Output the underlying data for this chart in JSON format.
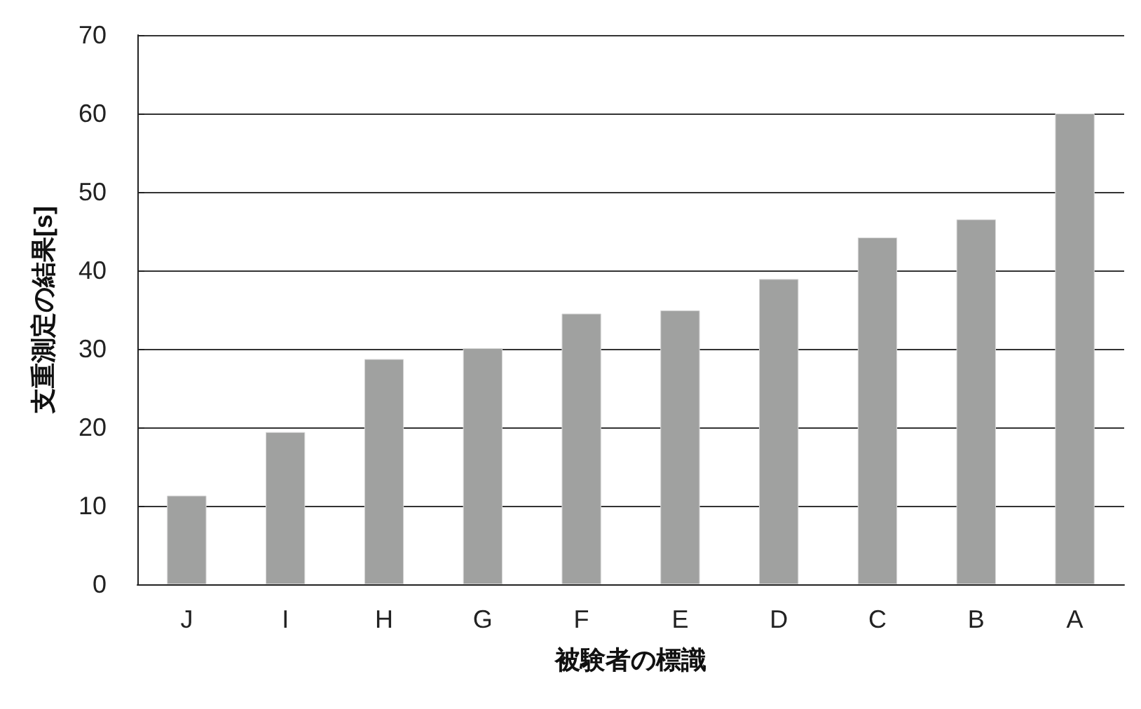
{
  "chart_data": {
    "type": "bar",
    "xlabel": "被験者の標識",
    "ylabel": "支重測定の結果[s]",
    "categories": [
      "J",
      "I",
      "H",
      "G",
      "F",
      "E",
      "D",
      "C",
      "B",
      "A"
    ],
    "values": [
      11.3,
      19.4,
      28.7,
      30.1,
      34.5,
      34.9,
      38.9,
      44.2,
      46.5,
      60
    ],
    "color": "#a0a1a0",
    "ylim": [
      0,
      70
    ],
    "yticks": [
      0,
      10,
      20,
      30,
      40,
      50,
      60,
      70
    ],
    "grid": "y"
  }
}
